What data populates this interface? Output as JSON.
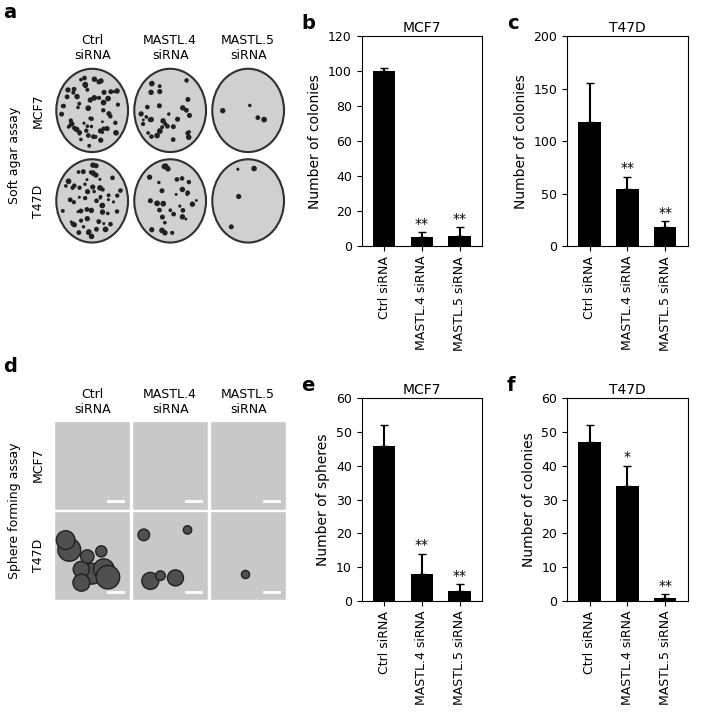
{
  "chart_data": [
    {
      "type": "bar",
      "panel": "b",
      "title": "MCF7",
      "y_label": "Number of colonies",
      "categories": [
        "Ctrl siRNA",
        "MASTL.4 siRNA",
        "MASTL.5 siRNA"
      ],
      "values": [
        100,
        5,
        6
      ],
      "errors": [
        2,
        3,
        5
      ],
      "significance": [
        null,
        "**",
        "**"
      ],
      "color": "#000000",
      "ylim": [
        0,
        120
      ],
      "yticks": [
        0,
        20,
        40,
        60,
        80,
        100,
        120
      ]
    },
    {
      "type": "bar",
      "panel": "c",
      "title": "T47D",
      "y_label": "Number of colonies",
      "categories": [
        "Ctrl siRNA",
        "MASTL.4 siRNA",
        "MASTL.5 siRNA"
      ],
      "values": [
        118,
        54,
        18
      ],
      "errors": [
        37,
        12,
        6
      ],
      "significance": [
        null,
        "**",
        "**"
      ],
      "color": "#000000",
      "ylim": [
        0,
        200
      ],
      "yticks": [
        0,
        50,
        100,
        150,
        200
      ]
    },
    {
      "type": "bar",
      "panel": "e",
      "title": "MCF7",
      "y_label": "Number of spheres",
      "categories": [
        "Ctrl siRNA",
        "MASTL.4 siRNA",
        "MASTL.5 siRNA"
      ],
      "values": [
        46,
        8,
        3
      ],
      "errors": [
        6,
        6,
        2
      ],
      "significance": [
        null,
        "**",
        "**"
      ],
      "color": "#000000",
      "ylim": [
        0,
        60
      ],
      "yticks": [
        0,
        10,
        20,
        30,
        40,
        50,
        60
      ]
    },
    {
      "type": "bar",
      "panel": "f",
      "title": "T47D",
      "y_label": "Number of colonies",
      "categories": [
        "Ctrl siRNA",
        "MASTL.4 siRNA",
        "MASTL.5 siRNA"
      ],
      "values": [
        47,
        34,
        1
      ],
      "errors": [
        5,
        6,
        1
      ],
      "significance": [
        null,
        "*",
        "**"
      ],
      "color": "#000000",
      "ylim": [
        0,
        60
      ],
      "yticks": [
        0,
        10,
        20,
        30,
        40,
        50,
        60
      ]
    }
  ],
  "image_panels": [
    {
      "panel": "a",
      "assay": "Soft agar assay",
      "kind": "dish",
      "columns": [
        "Ctrl siRNA",
        "MASTL.4 siRNA",
        "MASTL.5 siRNA"
      ],
      "rows": [
        "MCF7",
        "T47D"
      ]
    },
    {
      "panel": "d",
      "assay": "Sphere forming assay",
      "kind": "micrograph",
      "columns": [
        "Ctrl siRNA",
        "MASTL.4 siRNA",
        "MASTL.5 siRNA"
      ],
      "rows": [
        "MCF7",
        "T47D"
      ]
    }
  ]
}
